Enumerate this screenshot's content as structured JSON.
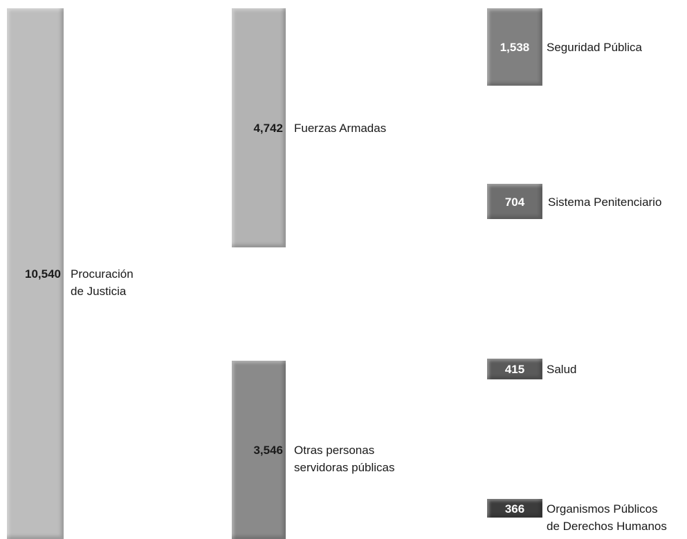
{
  "chart_data": {
    "type": "bar",
    "categories": [
      "Procuración\nde Justicia",
      "Fuerzas Armadas",
      "Otras personas\nservidoras públicas",
      "Seguridad Pública",
      "Sistema Penitenciario",
      "Salud",
      "Organismos Públicos\nde Derechos Humanos"
    ],
    "values": [
      10540,
      4742,
      3546,
      1538,
      704,
      415,
      366
    ],
    "value_labels": [
      "10,540",
      "4,742",
      "3,546",
      "1,538",
      "704",
      "415",
      "366"
    ],
    "colors": [
      "#bdbdbd",
      "#b3b3b3",
      "#8a8a8a",
      "#808080",
      "#6e6e6e",
      "#5a5a5a",
      "#3c3c3c"
    ],
    "title": "",
    "xlabel": "",
    "ylabel": "",
    "grid": false,
    "legend": "none"
  }
}
